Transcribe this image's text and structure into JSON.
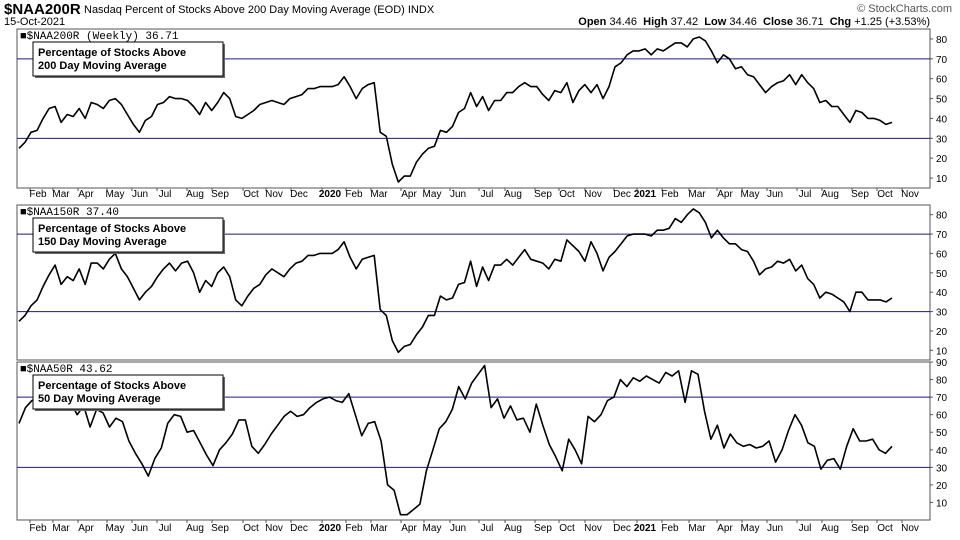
{
  "header": {
    "ticker": "$NAA200R",
    "name": "Nasdaq Percent of Stocks Above 200 Day Moving Average (EOD)",
    "exchange": "INDX",
    "date": "15-Oct-2021",
    "copyright": "© StockCharts.com",
    "open_label": "Open",
    "open": "34.46",
    "high_label": "High",
    "high": "37.42",
    "low_label": "Low",
    "low": "34.46",
    "close_label": "Close",
    "close": "36.71",
    "chg_label": "Chg",
    "chg": "+1.25 (+3.53%)"
  },
  "colors": {
    "line": "#000000",
    "reference_line": "#1a1a7a",
    "frame": "#555555",
    "title_text": "#000000"
  },
  "chart_data": [
    {
      "type": "line",
      "panel_label": "$NAA200R (Weekly) 36.71",
      "legend_text": [
        "Percentage of Stocks Above",
        "200 Day Moving Average"
      ],
      "ylim": [
        5,
        85
      ],
      "yticks": [
        10,
        20,
        30,
        40,
        50,
        60,
        70,
        80
      ],
      "reference_lines": [
        30,
        70
      ],
      "x_month_labels": [
        "Feb",
        "Mar",
        "Apr",
        "May",
        "Jun",
        "Jul",
        "Aug",
        "Sep",
        "Oct",
        "Nov",
        "Dec",
        "2020",
        "Feb",
        "Mar",
        "Apr",
        "May",
        "Jun",
        "Jul",
        "Aug",
        "Sep",
        "Oct",
        "Nov",
        "Dec",
        "2021",
        "Feb",
        "Mar",
        "Apr",
        "May",
        "Jun",
        "Jul",
        "Aug",
        "Sep",
        "Oct",
        "Nov"
      ],
      "values": [
        25,
        28,
        33,
        34,
        40,
        45,
        46,
        38,
        42,
        41,
        45,
        40,
        48,
        47,
        45,
        49,
        50,
        47,
        42,
        37,
        33,
        39,
        41,
        47,
        48,
        51,
        50,
        50,
        49,
        46,
        42,
        48,
        44,
        48,
        53,
        50,
        41,
        40,
        42,
        44,
        47,
        48,
        49,
        48,
        47,
        50,
        51,
        52,
        55,
        55,
        56,
        56,
        56,
        57,
        61,
        56,
        50,
        55,
        57,
        58,
        33,
        31,
        17,
        8,
        11,
        11,
        18,
        22,
        25,
        26,
        34,
        33,
        36,
        43,
        45,
        53,
        46,
        51,
        44,
        49,
        49,
        53,
        53,
        56,
        58,
        56,
        56,
        52,
        49,
        54,
        53,
        58,
        48,
        54,
        57,
        53,
        57,
        50,
        56,
        66,
        68,
        72,
        74,
        74,
        75,
        72,
        75,
        74,
        76,
        78,
        78,
        76,
        80,
        81,
        79,
        74,
        68,
        72,
        70,
        65,
        66,
        62,
        61,
        57,
        53,
        56,
        58,
        59,
        62,
        57,
        62,
        58,
        55,
        48,
        49,
        46,
        46,
        42,
        38,
        44,
        43,
        40,
        40,
        39,
        37,
        38
      ]
    },
    {
      "type": "line",
      "panel_label": "$NAA150R 37.40",
      "legend_text": [
        "Percentage of Stocks Above",
        "150 Day Moving Average"
      ],
      "ylim": [
        5,
        85
      ],
      "yticks": [
        10,
        20,
        30,
        40,
        50,
        60,
        70,
        80
      ],
      "reference_lines": [
        30,
        70
      ],
      "x_month_labels": [
        "Feb",
        "Mar",
        "Apr",
        "May",
        "Jun",
        "Jul",
        "Aug",
        "Sep",
        "Oct",
        "Nov",
        "Dec",
        "2020",
        "Feb",
        "Mar",
        "Apr",
        "May",
        "Jun",
        "Jul",
        "Aug",
        "Sep",
        "Oct",
        "Nov",
        "Dec",
        "2021",
        "Feb",
        "Mar",
        "Apr",
        "May",
        "Jun",
        "Jul",
        "Aug",
        "Sep",
        "Oct",
        "Nov"
      ],
      "values": [
        25,
        28,
        33,
        36,
        43,
        49,
        54,
        44,
        48,
        46,
        52,
        44,
        55,
        55,
        52,
        57,
        60,
        52,
        48,
        42,
        36,
        40,
        43,
        48,
        52,
        55,
        51,
        55,
        56,
        50,
        40,
        46,
        43,
        50,
        53,
        48,
        36,
        33,
        38,
        42,
        44,
        49,
        52,
        50,
        48,
        52,
        55,
        56,
        59,
        59,
        60,
        60,
        60,
        62,
        66,
        58,
        52,
        57,
        58,
        59,
        31,
        28,
        15,
        9,
        12,
        13,
        18,
        22,
        28,
        28,
        38,
        36,
        37,
        44,
        45,
        56,
        43,
        53,
        46,
        54,
        54,
        57,
        54,
        58,
        62,
        57,
        56,
        55,
        52,
        57,
        56,
        67,
        64,
        61,
        56,
        66,
        60,
        51,
        58,
        61,
        65,
        69,
        70,
        70,
        70,
        69,
        72,
        72,
        73,
        78,
        76,
        80,
        83,
        81,
        76,
        68,
        72,
        68,
        65,
        65,
        62,
        61,
        56,
        49,
        52,
        53,
        56,
        55,
        57,
        51,
        54,
        47,
        44,
        37,
        40,
        39,
        37,
        35,
        30,
        40,
        40,
        36,
        36,
        36,
        35,
        37
      ]
    },
    {
      "type": "line",
      "panel_label": "$NAA50R 43.62",
      "legend_text": [
        "Percentage of Stocks Above",
        "50 Day Moving Average"
      ],
      "ylim": [
        0,
        90
      ],
      "yticks": [
        10,
        20,
        30,
        40,
        50,
        60,
        70,
        80,
        90
      ],
      "reference_lines": [
        30,
        70
      ],
      "x_month_labels": [
        "Feb",
        "Mar",
        "Apr",
        "May",
        "Jun",
        "Jul",
        "Aug",
        "Sep",
        "Oct",
        "Nov",
        "Dec",
        "2020",
        "Feb",
        "Mar",
        "Apr",
        "May",
        "Jun",
        "Jul",
        "Aug",
        "Sep",
        "Oct",
        "Nov",
        "Dec",
        "2021",
        "Feb",
        "Mar",
        "Apr",
        "May",
        "Jun",
        "Jul",
        "Aug",
        "Sep",
        "Oct",
        "Nov"
      ],
      "values": [
        55,
        64,
        68,
        70,
        72,
        69,
        71,
        66,
        67,
        60,
        65,
        53,
        63,
        61,
        53,
        58,
        56,
        45,
        38,
        32,
        25,
        35,
        41,
        55,
        60,
        59,
        50,
        51,
        44,
        37,
        31,
        40,
        44,
        49,
        57,
        57,
        42,
        38,
        43,
        49,
        54,
        59,
        62,
        59,
        60,
        64,
        67,
        69,
        70,
        68,
        67,
        72,
        60,
        48,
        55,
        56,
        45,
        20,
        17,
        3,
        3,
        6,
        9,
        28,
        40,
        52,
        56,
        63,
        76,
        69,
        78,
        83,
        88,
        64,
        69,
        58,
        65,
        57,
        58,
        50,
        66,
        54,
        43,
        36,
        28,
        46,
        40,
        32,
        59,
        56,
        60,
        68,
        70,
        80,
        76,
        81,
        79,
        82,
        80,
        78,
        84,
        82,
        85,
        67,
        85,
        83,
        62,
        46,
        54,
        41,
        49,
        44,
        42,
        43,
        41,
        42,
        45,
        33,
        40,
        51,
        60,
        54,
        44,
        42,
        29,
        34,
        35,
        29,
        42,
        52,
        45,
        45,
        46,
        40,
        38,
        42
      ]
    }
  ]
}
